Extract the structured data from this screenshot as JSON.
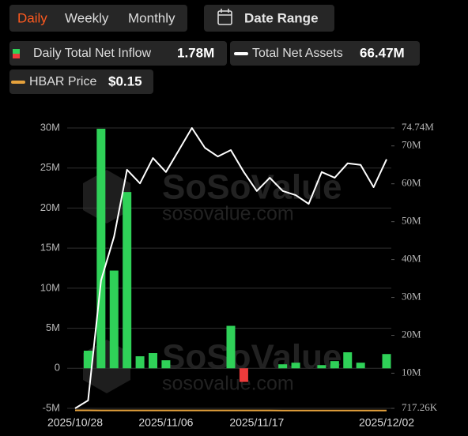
{
  "controls": {
    "tabs": [
      "Daily",
      "Weekly",
      "Monthly"
    ],
    "active_tab": 0,
    "date_range": "Date Range"
  },
  "watermark": [
    "SoSoValue",
    "sosovalue.com"
  ],
  "chart_data": {
    "type": "combo",
    "categories": [
      "2025/10/28",
      null,
      null,
      null,
      null,
      null,
      null,
      "2025/11/06",
      null,
      null,
      null,
      null,
      null,
      null,
      "2025/11/17",
      null,
      null,
      null,
      null,
      null,
      null,
      null,
      null,
      null,
      "2025/12/02"
    ],
    "series": [
      {
        "name": "Daily Total Net Inflow",
        "type": "bar",
        "color": "#2fd158",
        "negative_color": "#ee3b3b",
        "values": [
          0,
          2.2,
          29.9,
          12.2,
          22,
          1.5,
          1.9,
          1.0,
          0,
          0,
          0,
          0,
          5.3,
          -1.7,
          0,
          0,
          0.5,
          0.7,
          0,
          0.4,
          0.9,
          2.0,
          0.7,
          0,
          1.78
        ]
      },
      {
        "name": "Total Net Assets",
        "type": "line",
        "color": "#ffffff",
        "axis": "y2",
        "values": [
          0.71726,
          2.81,
          34.5,
          46.0,
          63.7,
          60.1,
          66.8,
          63.1,
          68.9,
          74.74,
          69.5,
          67.2,
          68.9,
          63.1,
          58.1,
          61.6,
          58.1,
          57.0,
          54.7,
          63.1,
          61.6,
          65.4,
          65.0,
          59.1,
          66.47
        ]
      },
      {
        "name": "HBAR Price",
        "type": "line",
        "color": "#e6a23c",
        "axis": "y2",
        "values": [
          0.19,
          0.19,
          0.18,
          0.18,
          0.18,
          0.18,
          0.18,
          0.17,
          0.18,
          0.18,
          0.18,
          0.17,
          0.17,
          0.17,
          0.16,
          0.16,
          0.15,
          0.14,
          0.14,
          0.14,
          0.14,
          0.14,
          0.15,
          0.15,
          0.15
        ]
      }
    ],
    "legend_values": [
      "1.78M",
      "66.47M",
      "$0.15"
    ],
    "ylim": [
      -5,
      30
    ],
    "yticks": [
      {
        "value": -5,
        "label": "-5M"
      },
      0,
      {
        "value": 5,
        "label": "5M"
      },
      {
        "value": 10,
        "label": "10M"
      },
      {
        "value": 15,
        "label": "15M"
      },
      {
        "value": 20,
        "label": "20M"
      },
      {
        "value": 25,
        "label": "25M"
      },
      {
        "value": 30,
        "label": "30M"
      }
    ],
    "y2lim": [
      0.71726,
      74.74
    ],
    "y2ticks": [
      {
        "value": 0.71726,
        "label": "717.26K"
      },
      {
        "value": 10,
        "label": "10M"
      },
      {
        "value": 20,
        "label": "20M"
      },
      {
        "value": 30,
        "label": "30M"
      },
      {
        "value": 40,
        "label": "40M"
      },
      {
        "value": 50,
        "label": "50M"
      },
      {
        "value": 60,
        "label": "60M"
      },
      {
        "value": 70,
        "label": "70M"
      },
      {
        "value": 74.74,
        "label": "74.74M"
      }
    ],
    "grid": true
  }
}
